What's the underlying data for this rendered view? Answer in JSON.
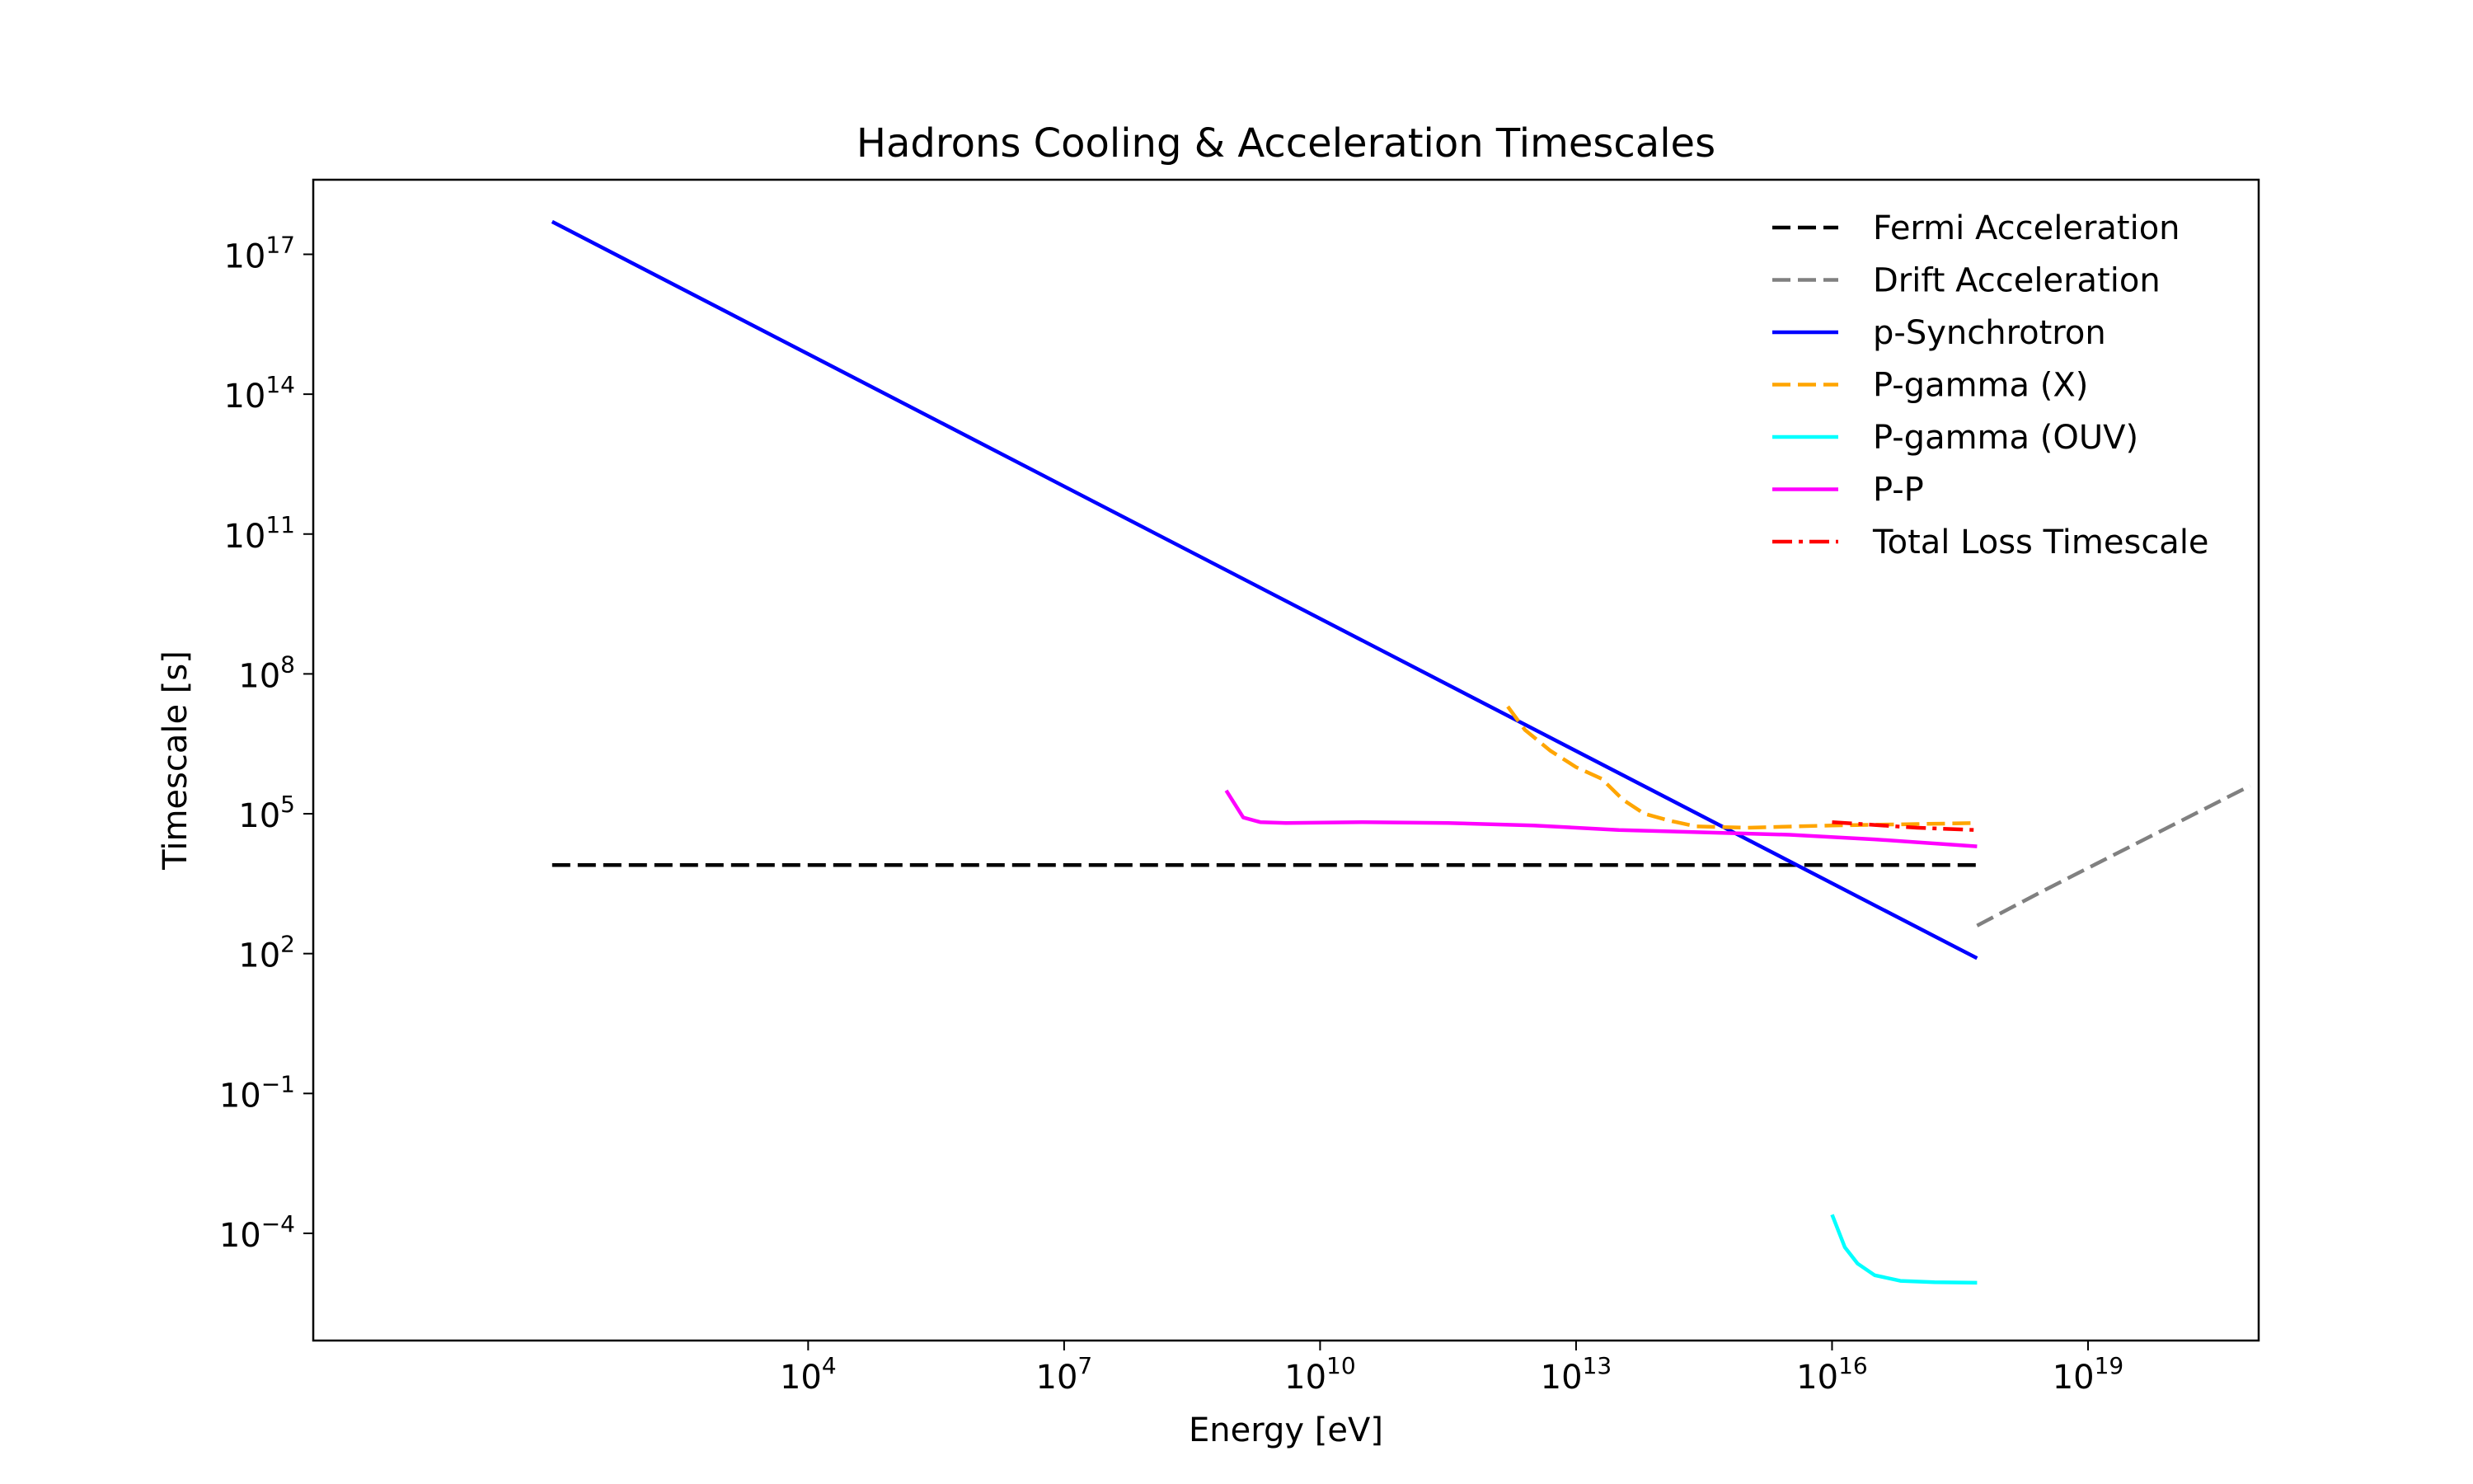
{
  "chart_data": {
    "type": "line",
    "title": "Hadrons Cooling & Acceleration Timescales",
    "xlabel": "Energy [eV]",
    "ylabel": "Timescale [s]",
    "xscale": "log",
    "yscale": "log",
    "xlim_log10": [
      -1.8,
      21.0
    ],
    "ylim_log10": [
      -6.3,
      18.6
    ],
    "grid": false,
    "legend_position": "top-right",
    "x_ticks": [
      {
        "base": "10",
        "exp": "4",
        "log10": 4
      },
      {
        "base": "10",
        "exp": "7",
        "log10": 7
      },
      {
        "base": "10",
        "exp": "10",
        "log10": 10
      },
      {
        "base": "10",
        "exp": "13",
        "log10": 13
      },
      {
        "base": "10",
        "exp": "16",
        "log10": 16
      },
      {
        "base": "10",
        "exp": "19",
        "log10": 19
      }
    ],
    "y_ticks": [
      {
        "base": "10",
        "exp": "−4",
        "log10": -4
      },
      {
        "base": "10",
        "exp": "−1",
        "log10": -1
      },
      {
        "base": "10",
        "exp": "2",
        "log10": 2
      },
      {
        "base": "10",
        "exp": "5",
        "log10": 5
      },
      {
        "base": "10",
        "exp": "8",
        "log10": 8
      },
      {
        "base": "10",
        "exp": "11",
        "log10": 11
      },
      {
        "base": "10",
        "exp": "14",
        "log10": 14
      },
      {
        "base": "10",
        "exp": "17",
        "log10": 17
      }
    ],
    "series": [
      {
        "name": "Fermi Acceleration",
        "color": "#000000",
        "style": "dashed",
        "points_log10": [
          [
            1.0,
            3.9
          ],
          [
            16.0,
            3.9
          ],
          [
            17.7,
            3.9
          ]
        ]
      },
      {
        "name": "Drift Acceleration",
        "color": "#808080",
        "style": "dashed",
        "points_log10": [
          [
            17.7,
            2.6
          ],
          [
            18.5,
            3.37
          ],
          [
            19.5,
            4.3
          ],
          [
            20.9,
            5.6
          ]
        ]
      },
      {
        "name": "p-Synchrotron",
        "color": "#0000ff",
        "style": "solid",
        "points_log10": [
          [
            1.0,
            17.7
          ],
          [
            17.7,
            1.9
          ]
        ]
      },
      {
        "name": "P-gamma (X)",
        "color": "#ffa500",
        "style": "dashed",
        "points_log10": [
          [
            12.2,
            7.3
          ],
          [
            12.4,
            6.8
          ],
          [
            12.7,
            6.35
          ],
          [
            13.0,
            6.0
          ],
          [
            13.3,
            5.75
          ],
          [
            13.55,
            5.3
          ],
          [
            13.8,
            5.0
          ],
          [
            14.1,
            4.85
          ],
          [
            14.4,
            4.73
          ],
          [
            15.0,
            4.7
          ],
          [
            16.0,
            4.75
          ],
          [
            17.0,
            4.78
          ],
          [
            17.7,
            4.8
          ]
        ]
      },
      {
        "name": "P-gamma (OUV)",
        "color": "#00ffff",
        "style": "solid",
        "points_log10": [
          [
            16.0,
            -3.6
          ],
          [
            16.15,
            -4.3
          ],
          [
            16.3,
            -4.65
          ],
          [
            16.5,
            -4.9
          ],
          [
            16.8,
            -5.02
          ],
          [
            17.2,
            -5.05
          ],
          [
            17.7,
            -5.06
          ]
        ]
      },
      {
        "name": "P-P",
        "color": "#ff00ff",
        "style": "solid",
        "points_log10": [
          [
            8.9,
            5.5
          ],
          [
            9.1,
            4.92
          ],
          [
            9.3,
            4.82
          ],
          [
            9.6,
            4.8
          ],
          [
            10.5,
            4.82
          ],
          [
            11.5,
            4.8
          ],
          [
            12.5,
            4.75
          ],
          [
            13.5,
            4.65
          ],
          [
            14.5,
            4.6
          ],
          [
            15.5,
            4.55
          ],
          [
            16.5,
            4.45
          ],
          [
            17.7,
            4.3
          ]
        ]
      },
      {
        "name": "Total Loss Timescale",
        "color": "#ff0000",
        "style": "dashdot",
        "points_log10": [
          [
            16.0,
            4.82
          ],
          [
            16.5,
            4.76
          ],
          [
            17.0,
            4.7
          ],
          [
            17.7,
            4.65
          ]
        ]
      }
    ]
  }
}
